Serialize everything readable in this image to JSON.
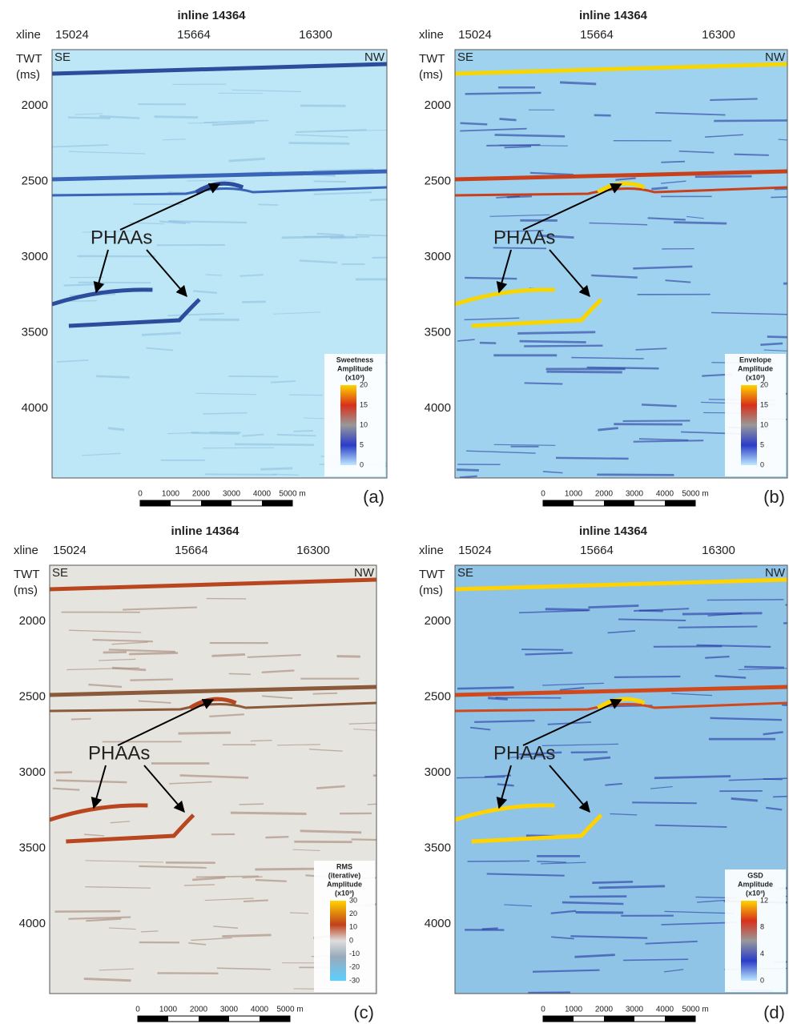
{
  "panels": [
    {
      "label": "(a)",
      "title": "inline 14364",
      "xaxis_label": "xline",
      "xticks": [
        15024,
        15664,
        16300
      ],
      "yaxis_label": [
        "TWT",
        "(ms)"
      ],
      "yticks": [
        2000,
        2500,
        3000,
        3500,
        4000
      ],
      "left_tag": "SE",
      "right_tag": "NW",
      "annotation": "PHAAs",
      "colorbar": {
        "title": [
          "Sweetness",
          "Amplitude",
          "(x10³)"
        ],
        "ticks": [
          20,
          15,
          10,
          5,
          0
        ]
      },
      "scale_bar": [
        "0",
        "1000",
        "2000",
        "3000",
        "4000",
        "5000 m"
      ]
    },
    {
      "label": "(b)",
      "title": "inline 14364",
      "xaxis_label": "xline",
      "xticks": [
        15024,
        15664,
        16300
      ],
      "yaxis_label": [
        "TWT",
        "(ms)"
      ],
      "yticks": [
        2000,
        2500,
        3000,
        3500,
        4000
      ],
      "left_tag": "SE",
      "right_tag": "NW",
      "annotation": "PHAAs",
      "colorbar": {
        "title": [
          "Envelope",
          "Amplitude",
          "(x10³)"
        ],
        "ticks": [
          20,
          15,
          10,
          5,
          0
        ]
      },
      "scale_bar": [
        "0",
        "1000",
        "2000",
        "3000",
        "4000",
        "5000 m"
      ]
    },
    {
      "label": "(c)",
      "title": "inline 14364",
      "xaxis_label": "xline",
      "xticks": [
        15024,
        15664,
        16300
      ],
      "yaxis_label": [
        "TWT",
        "(ms)"
      ],
      "yticks": [
        2000,
        2500,
        3000,
        3500,
        4000
      ],
      "left_tag": "SE",
      "right_tag": "NW",
      "annotation": "PHAAs",
      "colorbar": {
        "title": [
          "RMS",
          "(iterative)",
          "Amplitude",
          "(x10³)"
        ],
        "ticks": [
          30,
          20,
          10,
          0,
          -10,
          -20,
          -30
        ]
      },
      "scale_bar": [
        "0",
        "1000",
        "2000",
        "3000",
        "4000",
        "5000 m"
      ]
    },
    {
      "label": "(d)",
      "title": "inline 14364",
      "xaxis_label": "xline",
      "xticks": [
        15024,
        15664,
        16300
      ],
      "yaxis_label": [
        "TWT",
        "(ms)"
      ],
      "yticks": [
        2000,
        2500,
        3000,
        3500,
        4000
      ],
      "left_tag": "SE",
      "right_tag": "NW",
      "annotation": "PHAAs",
      "colorbar": {
        "title": [
          "GSD",
          "Amplitude",
          "(x10³)"
        ],
        "ticks": [
          12,
          8,
          4,
          0
        ]
      },
      "scale_bar": [
        "0",
        "1000",
        "2000",
        "3000",
        "4000",
        "5000 m"
      ]
    }
  ]
}
